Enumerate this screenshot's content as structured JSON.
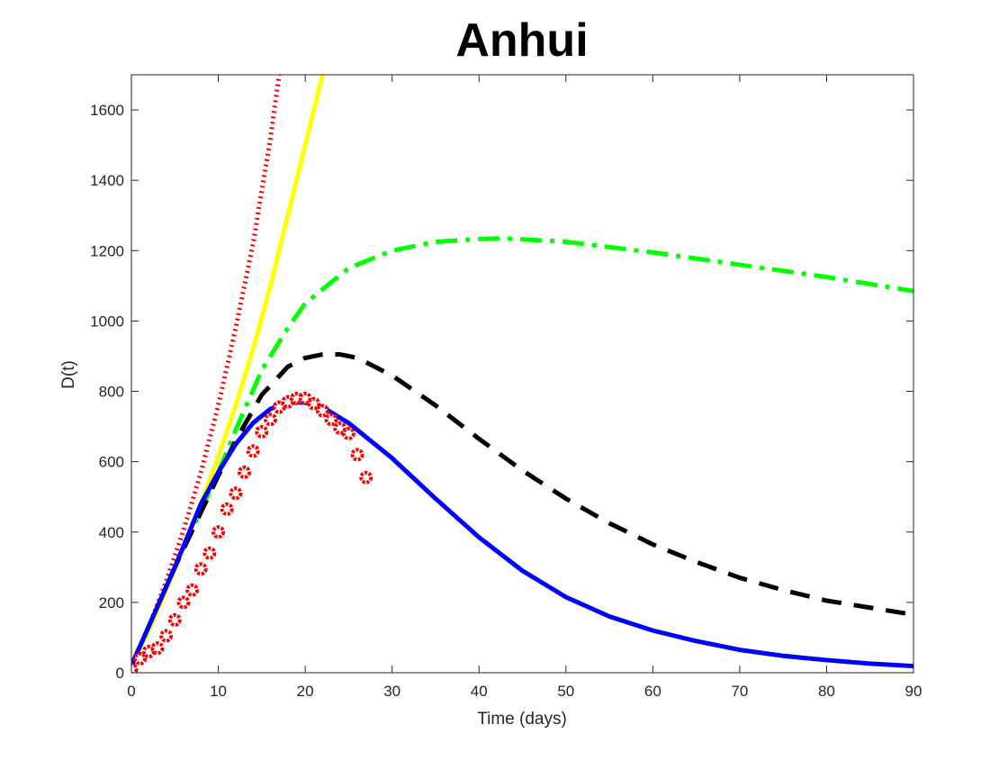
{
  "chart_data": {
    "type": "line",
    "title": "Anhui",
    "xlabel": "Time (days)",
    "ylabel": "D(t)",
    "xlim": [
      0,
      90
    ],
    "ylim": [
      0,
      1700
    ],
    "xticks": [
      0,
      10,
      20,
      30,
      40,
      50,
      60,
      70,
      80,
      90
    ],
    "yticks": [
      0,
      200,
      400,
      600,
      800,
      1000,
      1200,
      1400,
      1600
    ],
    "grid": false,
    "legend": "none",
    "series": [
      {
        "style": "dotted",
        "color": "#ff0000",
        "x": [
          0,
          2,
          4,
          6,
          8,
          10,
          12,
          14,
          16,
          17
        ],
        "y": [
          20,
          130,
          260,
          405,
          570,
          760,
          980,
          1220,
          1520,
          1700
        ]
      },
      {
        "style": "solid",
        "color": "#ffff00",
        "x": [
          0,
          2,
          4,
          6,
          8,
          10,
          12,
          14,
          16,
          18,
          20,
          22
        ],
        "y": [
          20,
          120,
          235,
          355,
          480,
          615,
          760,
          920,
          1100,
          1300,
          1500,
          1700
        ]
      },
      {
        "style": "dashdot",
        "color": "#00ff00",
        "x": [
          0,
          5,
          10,
          12,
          15,
          18,
          20,
          25,
          30,
          35,
          40,
          43,
          50,
          60,
          70,
          80,
          90
        ],
        "y": [
          20,
          300,
          570,
          690,
          860,
          980,
          1050,
          1150,
          1200,
          1225,
          1233,
          1235,
          1225,
          1195,
          1160,
          1125,
          1085
        ]
      },
      {
        "style": "dashed",
        "color": "#000000",
        "x": [
          0,
          5,
          10,
          12,
          15,
          18,
          20,
          22,
          24,
          26,
          30,
          35,
          40,
          45,
          50,
          55,
          60,
          65,
          70,
          75,
          80,
          85,
          90
        ],
        "y": [
          20,
          300,
          560,
          660,
          790,
          870,
          895,
          905,
          905,
          895,
          845,
          760,
          665,
          575,
          495,
          425,
          365,
          315,
          270,
          235,
          205,
          185,
          165
        ]
      },
      {
        "style": "solid",
        "color": "#0000ff",
        "x": [
          0,
          5,
          8,
          10,
          12,
          14,
          16,
          18,
          20,
          22,
          25,
          30,
          35,
          40,
          45,
          50,
          55,
          60,
          65,
          70,
          75,
          80,
          85,
          90
        ],
        "y": [
          20,
          300,
          480,
          570,
          650,
          710,
          750,
          768,
          768,
          755,
          710,
          610,
          495,
          385,
          290,
          215,
          160,
          120,
          90,
          65,
          48,
          36,
          26,
          19
        ]
      }
    ],
    "markers": {
      "color": "#ff0000",
      "x": [
        0,
        1,
        2,
        3,
        4,
        5,
        6,
        7,
        8,
        9,
        10,
        11,
        12,
        13,
        14,
        15,
        16,
        17,
        18,
        19,
        20,
        21,
        22,
        23,
        24,
        25,
        26,
        27
      ],
      "y": [
        10,
        40,
        60,
        70,
        105,
        150,
        200,
        235,
        295,
        340,
        400,
        465,
        510,
        570,
        630,
        685,
        720,
        755,
        770,
        780,
        780,
        765,
        745,
        720,
        695,
        680,
        620,
        555
      ]
    }
  }
}
